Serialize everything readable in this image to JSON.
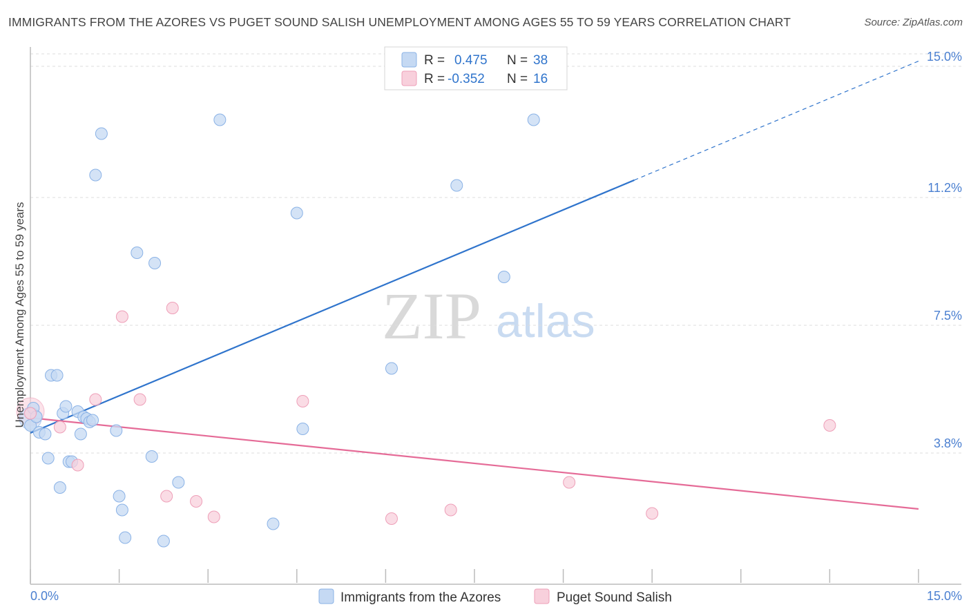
{
  "title": "IMMIGRANTS FROM THE AZORES VS PUGET SOUND SALISH UNEMPLOYMENT AMONG AGES 55 TO 59 YEARS CORRELATION CHART",
  "source": "Source: ZipAtlas.com",
  "watermark": {
    "zip": "ZIP",
    "atlas": "atlas"
  },
  "colors": {
    "blue_fill": "#c5d9f3",
    "blue_stroke": "#8ab2e6",
    "blue_line": "#2f74cc",
    "pink_fill": "#f8d0dc",
    "pink_stroke": "#ee9fb8",
    "pink_line": "#e56b97",
    "tick_text": "#4a7fd0",
    "grid": "#dddddd"
  },
  "legend": {
    "r_label": "R =",
    "n_label": "N =",
    "series": [
      {
        "name": "Immigrants from the Azores",
        "r": "0.475",
        "n": "38"
      },
      {
        "name": "Puget Sound Salish",
        "r": "-0.352",
        "n": "16"
      }
    ]
  },
  "chart_data": {
    "type": "scatter",
    "title": "IMMIGRANTS FROM THE AZORES VS PUGET SOUND SALISH UNEMPLOYMENT AMONG AGES 55 TO 59 YEARS CORRELATION CHART",
    "xlabel": "",
    "ylabel": "Unemployment Among Ages 55 to 59 years",
    "xlim": [
      0,
      15
    ],
    "ylim": [
      0,
      15
    ],
    "x_tick_labels": [
      "0.0%",
      "15.0%"
    ],
    "y_ticks": [
      3.8,
      7.5,
      11.2,
      15.0
    ],
    "y_tick_labels": [
      "3.8%",
      "7.5%",
      "11.2%",
      "15.0%"
    ],
    "series": [
      {
        "name": "Immigrants from the Azores",
        "color": "blue",
        "points": [
          [
            0.0,
            4.6
          ],
          [
            0.15,
            4.4
          ],
          [
            0.25,
            4.35
          ],
          [
            0.3,
            3.65
          ],
          [
            0.35,
            6.05
          ],
          [
            0.45,
            6.05
          ],
          [
            0.5,
            2.8
          ],
          [
            0.55,
            4.95
          ],
          [
            0.6,
            5.15
          ],
          [
            0.65,
            3.55
          ],
          [
            0.7,
            3.55
          ],
          [
            0.8,
            5.0
          ],
          [
            0.85,
            4.35
          ],
          [
            0.9,
            4.85
          ],
          [
            0.95,
            4.8
          ],
          [
            1.0,
            4.7
          ],
          [
            1.05,
            4.75
          ],
          [
            1.1,
            11.85
          ],
          [
            1.2,
            13.05
          ],
          [
            1.45,
            4.45
          ],
          [
            1.5,
            2.55
          ],
          [
            1.55,
            2.15
          ],
          [
            1.6,
            1.35
          ],
          [
            1.8,
            9.6
          ],
          [
            2.05,
            3.7
          ],
          [
            2.1,
            9.3
          ],
          [
            2.25,
            1.25
          ],
          [
            2.5,
            2.95
          ],
          [
            3.2,
            13.45
          ],
          [
            4.1,
            1.75
          ],
          [
            4.5,
            10.75
          ],
          [
            4.6,
            4.5
          ],
          [
            6.1,
            6.25
          ],
          [
            7.2,
            11.55
          ],
          [
            8.5,
            13.45
          ],
          [
            8.0,
            8.9
          ],
          [
            0.05,
            5.1
          ],
          [
            0.1,
            4.85
          ]
        ],
        "trend": {
          "x0": 0.0,
          "y0": 4.38,
          "x1": 15.0,
          "y1": 15.15,
          "solid_until_x": 10.2
        }
      },
      {
        "name": "Puget Sound Salish",
        "color": "pink",
        "points": [
          [
            0.0,
            4.95
          ],
          [
            0.5,
            4.55
          ],
          [
            0.8,
            3.45
          ],
          [
            1.1,
            5.35
          ],
          [
            1.55,
            7.75
          ],
          [
            1.85,
            5.35
          ],
          [
            2.3,
            2.55
          ],
          [
            2.4,
            8.0
          ],
          [
            2.8,
            2.4
          ],
          [
            3.1,
            1.95
          ],
          [
            4.6,
            5.3
          ],
          [
            6.1,
            1.9
          ],
          [
            7.1,
            2.15
          ],
          [
            9.1,
            2.95
          ],
          [
            10.5,
            2.05
          ],
          [
            13.5,
            4.6
          ]
        ],
        "trend": {
          "x0": 0.0,
          "y0": 4.82,
          "x1": 15.0,
          "y1": 2.18
        }
      }
    ]
  }
}
